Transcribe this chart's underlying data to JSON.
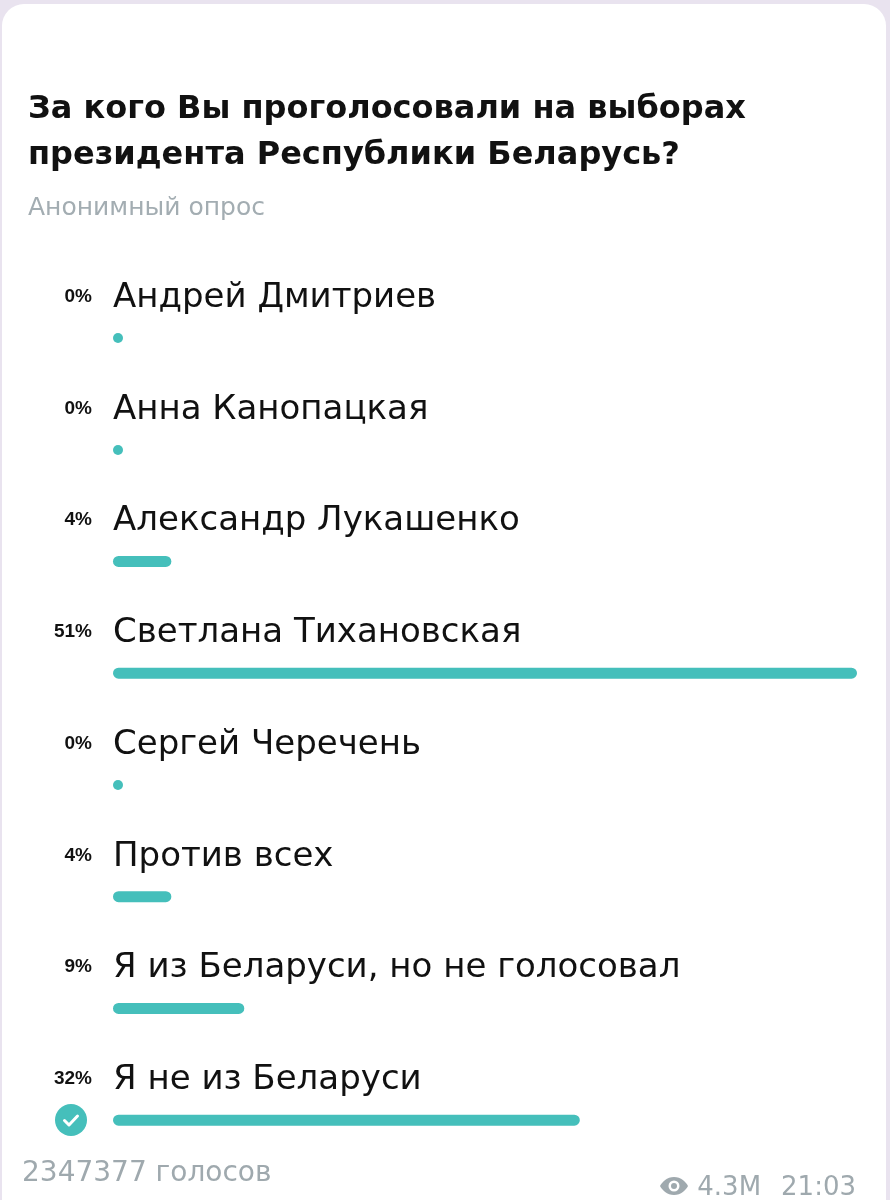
{
  "chart_data": {
    "type": "bar",
    "orientation": "horizontal",
    "title": "За кого Вы проголосовали на выборах президента Республики Беларусь?",
    "subtitle": "Анонимный опрос",
    "categories": [
      "Андрей Дмитриев",
      "Анна Канопацкая",
      "Александр Лукашенко",
      "Светлана Тихановская",
      "Сергей Черечень",
      "Против всех",
      "Я из Беларуси, но не голосовал",
      "Я не из Беларуси"
    ],
    "values": [
      0,
      0,
      4,
      51,
      0,
      4,
      9,
      32
    ],
    "value_labels": [
      "0%",
      "0%",
      "4%",
      "51%",
      "0%",
      "4%",
      "9%",
      "32%"
    ],
    "color": "#45bfbb",
    "annotations": [
      "2347377 голосов",
      "4.3M",
      "21:03"
    ]
  }
}
